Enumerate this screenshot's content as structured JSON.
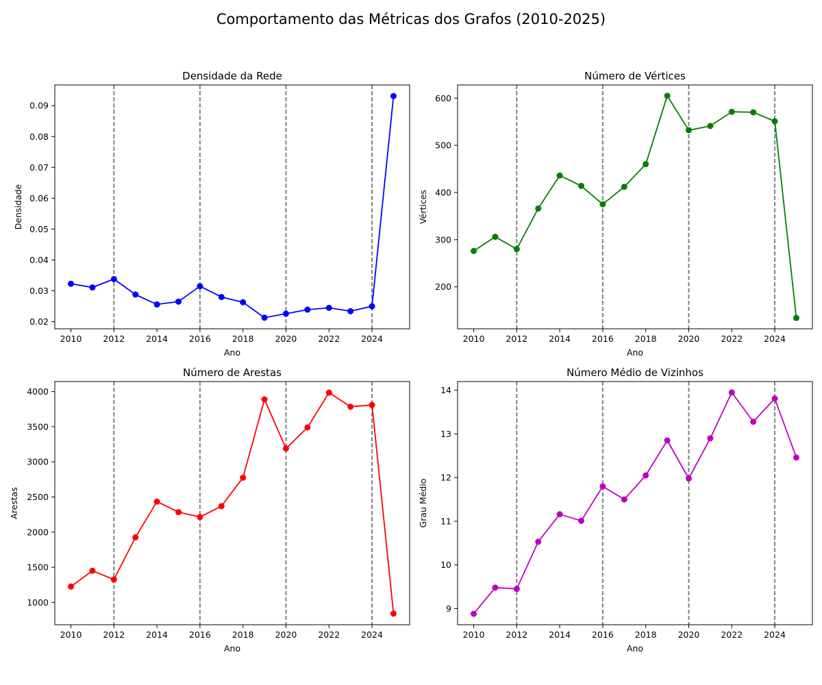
{
  "figure_title": "Comportamento das Métricas dos Grafos (2010-2025)",
  "chart_data": [
    {
      "type": "line",
      "title": "Densidade da Rede",
      "xlabel": "Ano",
      "ylabel": "Densidade",
      "color": "#0000ff",
      "x": [
        2010,
        2011,
        2012,
        2013,
        2014,
        2015,
        2016,
        2017,
        2018,
        2019,
        2020,
        2021,
        2022,
        2023,
        2024,
        2025
      ],
      "values": [
        0.0323,
        0.0311,
        0.0338,
        0.0288,
        0.0256,
        0.0265,
        0.0315,
        0.028,
        0.0263,
        0.0213,
        0.0226,
        0.0239,
        0.0245,
        0.0234,
        0.025,
        0.0931
      ],
      "xlim": [
        2009.25,
        2025.75
      ],
      "ylim": [
        0.0177,
        0.0967
      ],
      "xticks": [
        2010,
        2012,
        2014,
        2016,
        2018,
        2020,
        2022,
        2024
      ],
      "yticks": [
        0.02,
        0.03,
        0.04,
        0.05,
        0.06,
        0.07,
        0.08,
        0.09
      ],
      "ytick_labels": [
        "0.02",
        "0.03",
        "0.04",
        "0.05",
        "0.06",
        "0.07",
        "0.08",
        "0.09"
      ],
      "vlines": [
        2012,
        2016,
        2020,
        2024
      ],
      "grid": false
    },
    {
      "type": "line",
      "title": "Número de Vértices",
      "xlabel": "Ano",
      "ylabel": "Vértices",
      "color": "#008000",
      "x": [
        2010,
        2011,
        2012,
        2013,
        2014,
        2015,
        2016,
        2017,
        2018,
        2019,
        2020,
        2021,
        2022,
        2023,
        2024,
        2025
      ],
      "values": [
        276,
        306,
        280,
        366,
        436,
        414,
        375,
        412,
        460,
        605,
        532,
        541,
        571,
        570,
        551,
        134
      ],
      "xlim": [
        2009.25,
        2025.75
      ],
      "ylim": [
        111,
        628
      ],
      "xticks": [
        2010,
        2012,
        2014,
        2016,
        2018,
        2020,
        2022,
        2024
      ],
      "yticks": [
        200,
        300,
        400,
        500,
        600
      ],
      "ytick_labels": [
        "200",
        "300",
        "400",
        "500",
        "600"
      ],
      "vlines": [
        2012,
        2016,
        2020,
        2024
      ],
      "grid": false
    },
    {
      "type": "line",
      "title": "Número de Arestas",
      "xlabel": "Ano",
      "ylabel": "Arestas",
      "color": "#ff0000",
      "x": [
        2010,
        2011,
        2012,
        2013,
        2014,
        2015,
        2016,
        2017,
        2018,
        2019,
        2020,
        2021,
        2022,
        2023,
        2024,
        2025
      ],
      "values": [
        1225,
        1450,
        1325,
        1925,
        2435,
        2285,
        2215,
        2370,
        2775,
        3890,
        3190,
        3490,
        3985,
        3785,
        3810,
        840
      ],
      "xlim": [
        2009.25,
        2025.75
      ],
      "ylim": [
        682,
        4143
      ],
      "xticks": [
        2010,
        2012,
        2014,
        2016,
        2018,
        2020,
        2022,
        2024
      ],
      "yticks": [
        1000,
        1500,
        2000,
        2500,
        3000,
        3500,
        4000
      ],
      "ytick_labels": [
        "1000",
        "1500",
        "2000",
        "2500",
        "3000",
        "3500",
        "4000"
      ],
      "vlines": [
        2012,
        2016,
        2020,
        2024
      ],
      "grid": false
    },
    {
      "type": "line",
      "title": "Número Médio de Vizinhos",
      "xlabel": "Ano",
      "ylabel": "Grau Médio",
      "color": "#bf00bf",
      "x": [
        2010,
        2011,
        2012,
        2013,
        2014,
        2015,
        2016,
        2017,
        2018,
        2019,
        2020,
        2021,
        2022,
        2023,
        2024,
        2025
      ],
      "values": [
        8.88,
        9.48,
        9.45,
        10.53,
        11.16,
        11.01,
        11.8,
        11.5,
        12.05,
        12.85,
        11.98,
        12.9,
        13.95,
        13.28,
        13.81,
        12.46
      ],
      "xlim": [
        2009.25,
        2025.75
      ],
      "ylim": [
        8.63,
        14.2
      ],
      "xticks": [
        2010,
        2012,
        2014,
        2016,
        2018,
        2020,
        2022,
        2024
      ],
      "yticks": [
        9,
        10,
        11,
        12,
        13,
        14
      ],
      "ytick_labels": [
        "9",
        "10",
        "11",
        "12",
        "13",
        "14"
      ],
      "vlines": [
        2012,
        2016,
        2020,
        2024
      ],
      "grid": false
    }
  ]
}
